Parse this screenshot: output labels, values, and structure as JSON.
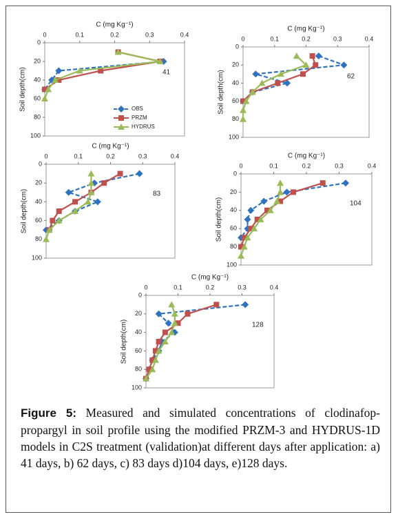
{
  "chart_data": [
    {
      "type": "line",
      "x_label": "C (mg Kg⁻¹)",
      "y_label": "Soil depth(cm)",
      "annotation": "41",
      "xlim": [
        0,
        0.4
      ],
      "xticks": [
        0,
        0.1,
        0.2,
        0.3,
        0.4
      ],
      "ylim": [
        0,
        100
      ],
      "yticks": [
        0,
        20,
        40,
        60,
        80,
        100
      ],
      "y_inverted": true,
      "legend": "bottom-center",
      "series": [
        {
          "name": "OBS",
          "color": "#2f72c0",
          "marker": "diamond",
          "dashed": true,
          "x": [
            0.34,
            0.04,
            0.02,
            0
          ],
          "values": [
            20,
            30,
            40,
            50
          ]
        },
        {
          "name": "PRZM",
          "color": "#c0504d",
          "marker": "square",
          "dashed": false,
          "x": [
            0.21,
            0.33,
            0.16,
            0.04,
            0
          ],
          "values": [
            10,
            20,
            30,
            40,
            50
          ]
        },
        {
          "name": "HYDRUS",
          "color": "#9bbb59",
          "marker": "triangle",
          "dashed": false,
          "x": [
            0.21,
            0.33,
            0.1,
            0.03,
            0.01,
            0
          ],
          "values": [
            10,
            20,
            30,
            40,
            50,
            60
          ]
        }
      ]
    },
    {
      "type": "line",
      "x_label": "C (mg Kg⁻¹)",
      "y_label": "Soil depth(cm)",
      "annotation": "62",
      "xlim": [
        0,
        0.4
      ],
      "xticks": [
        0,
        0.1,
        0.2,
        0.3,
        0.4
      ],
      "ylim": [
        0,
        100
      ],
      "yticks": [
        0,
        20,
        40,
        60,
        80,
        100
      ],
      "y_inverted": true,
      "series": [
        {
          "name": "OBS",
          "color": "#2f72c0",
          "marker": "diamond",
          "dashed": true,
          "x": [
            0.24,
            0.32,
            0.04,
            0.14,
            0.03,
            0
          ],
          "values": [
            10,
            20,
            30,
            40,
            50,
            60
          ]
        },
        {
          "name": "PRZM",
          "color": "#c0504d",
          "marker": "square",
          "dashed": false,
          "x": [
            0.22,
            0.23,
            0.19,
            0.11,
            0.03,
            0
          ],
          "values": [
            10,
            20,
            30,
            40,
            50,
            60
          ]
        },
        {
          "name": "HYDRUS",
          "color": "#9bbb59",
          "marker": "triangle",
          "dashed": false,
          "x": [
            0.17,
            0.2,
            0.12,
            0.06,
            0.03,
            0.01,
            0,
            0
          ],
          "values": [
            10,
            20,
            30,
            40,
            50,
            60,
            70,
            80
          ]
        }
      ]
    },
    {
      "type": "line",
      "x_label": "C (mg Kg⁻¹)",
      "y_label": "Soil depth(cm)",
      "annotation": "83",
      "xlim": [
        0,
        0.4
      ],
      "xticks": [
        0,
        0.1,
        0.2,
        0.3,
        0.4
      ],
      "ylim": [
        0,
        100
      ],
      "yticks": [
        0,
        20,
        40,
        60,
        80,
        100
      ],
      "y_inverted": true,
      "series": [
        {
          "name": "OBS",
          "color": "#2f72c0",
          "marker": "diamond",
          "dashed": true,
          "x": [
            0.29,
            0.15,
            0.07,
            0.16,
            0.09,
            0.04,
            0
          ],
          "values": [
            10,
            20,
            30,
            40,
            50,
            60,
            70
          ]
        },
        {
          "name": "PRZM",
          "color": "#c0504d",
          "marker": "square",
          "dashed": false,
          "x": [
            0.23,
            0.18,
            0.14,
            0.09,
            0.04,
            0.02,
            0.01
          ],
          "values": [
            10,
            20,
            30,
            40,
            50,
            60,
            70
          ]
        },
        {
          "name": "HYDRUS",
          "color": "#9bbb59",
          "marker": "triangle",
          "dashed": false,
          "x": [
            0.14,
            0.14,
            0.14,
            0.13,
            0.09,
            0.04,
            0.01,
            0
          ],
          "values": [
            10,
            20,
            30,
            40,
            50,
            60,
            70,
            80
          ]
        }
      ]
    },
    {
      "type": "line",
      "x_label": "C (mg Kg⁻¹)",
      "y_label": "Soil depth(cm)",
      "annotation": "104",
      "xlim": [
        0,
        0.4
      ],
      "xticks": [
        0,
        0.1,
        0.2,
        0.3,
        0.4
      ],
      "ylim": [
        0,
        100
      ],
      "yticks": [
        0,
        20,
        40,
        60,
        80,
        100
      ],
      "y_inverted": true,
      "series": [
        {
          "name": "OBS",
          "color": "#2f72c0",
          "marker": "diamond",
          "dashed": true,
          "x": [
            0.32,
            0.14,
            0.07,
            0.03,
            0.02,
            0.02,
            0
          ],
          "values": [
            10,
            20,
            30,
            40,
            50,
            60,
            70
          ]
        },
        {
          "name": "PRZM",
          "color": "#c0504d",
          "marker": "square",
          "dashed": false,
          "x": [
            0.25,
            0.16,
            0.12,
            0.08,
            0.05,
            0.03,
            0.01,
            0
          ],
          "values": [
            10,
            20,
            30,
            40,
            50,
            60,
            70,
            80
          ]
        },
        {
          "name": "HYDRUS",
          "color": "#9bbb59",
          "marker": "triangle",
          "dashed": false,
          "x": [
            0.12,
            0.12,
            0.11,
            0.09,
            0.06,
            0.04,
            0.02,
            0.01,
            0
          ],
          "values": [
            10,
            20,
            30,
            40,
            50,
            60,
            70,
            80,
            90
          ]
        }
      ]
    },
    {
      "type": "line",
      "x_label": "C (mg Kg⁻¹)",
      "y_label": "Soil depth(cm)",
      "annotation": "128",
      "xlim": [
        0,
        0.4
      ],
      "xticks": [
        0,
        0.1,
        0.2,
        0.3,
        0.4
      ],
      "ylim": [
        0,
        100
      ],
      "yticks": [
        0,
        20,
        40,
        60,
        80,
        100
      ],
      "y_inverted": true,
      "series": [
        {
          "name": "OBS",
          "color": "#2f72c0",
          "marker": "diamond",
          "dashed": true,
          "x": [
            0.31,
            0.04,
            0.07,
            0.09,
            0.05,
            0.04,
            0.02,
            0.01,
            0
          ],
          "values": [
            10,
            20,
            30,
            40,
            50,
            60,
            70,
            80,
            90
          ]
        },
        {
          "name": "PRZM",
          "color": "#c0504d",
          "marker": "square",
          "dashed": false,
          "x": [
            0.22,
            0.13,
            0.1,
            0.06,
            0.04,
            0.03,
            0.02,
            0.01,
            0
          ],
          "values": [
            10,
            20,
            30,
            40,
            50,
            60,
            70,
            80,
            90
          ]
        },
        {
          "name": "HYDRUS",
          "color": "#9bbb59",
          "marker": "triangle",
          "dashed": false,
          "x": [
            0.08,
            0.09,
            0.09,
            0.08,
            0.06,
            0.04,
            0.03,
            0.02,
            0
          ],
          "values": [
            10,
            20,
            30,
            40,
            50,
            60,
            70,
            80,
            90
          ]
        }
      ]
    }
  ],
  "caption": {
    "label": "Figure 5:",
    "text": " Measured and simulated concentrations of clodinafop-propargyl in soil profile using the modified PRZM-3 and HYDRUS-1D models in C2S treatment (validation)at different days after application: a) 41 days, b) 62 days, c) 83 days d)104 days, e)128 days."
  }
}
